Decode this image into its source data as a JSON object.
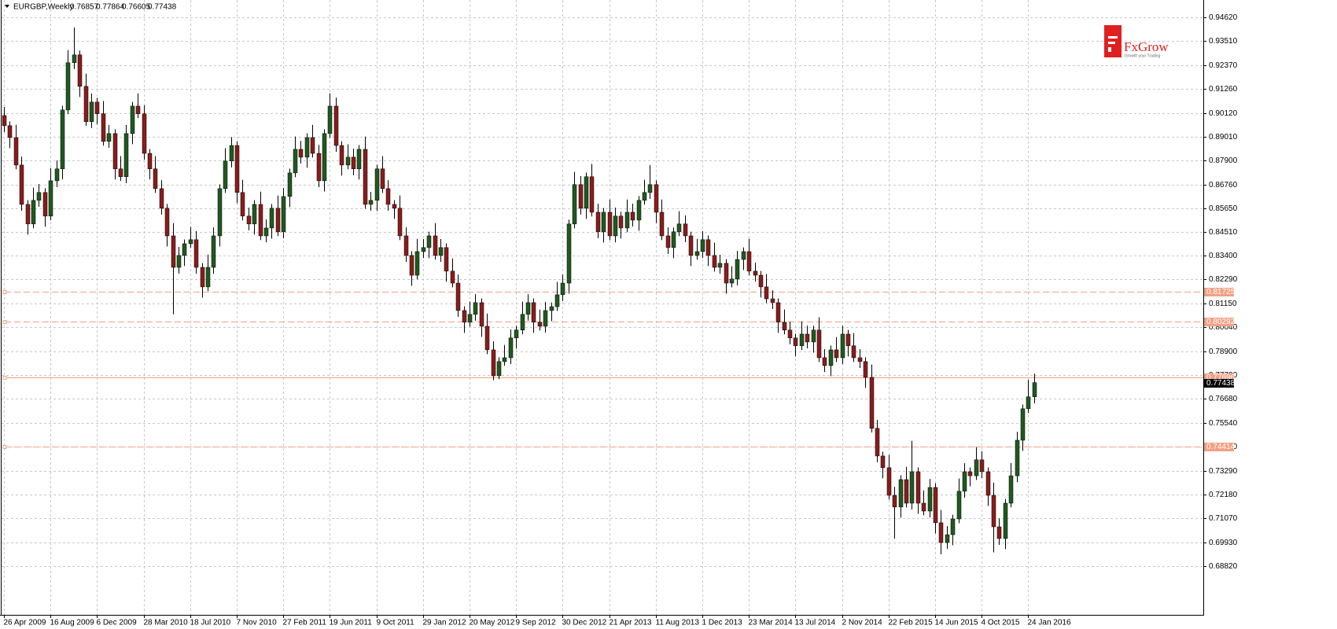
{
  "chart_data": {
    "type": "candlestick",
    "title": "EURGBP,Weekly",
    "header_values": [
      0.76857,
      0.77864,
      0.76605,
      0.77438
    ],
    "up_color": "#1f5a1f",
    "down_color": "#8a1c1c",
    "wick_color": "#000000",
    "grid": true,
    "ylim": [
      0.6652,
      0.9543
    ],
    "yticks": [
      {
        "value": 0.9462,
        "label": "0.94620"
      },
      {
        "value": 0.9351,
        "label": "0.93510"
      },
      {
        "value": 0.9237,
        "label": "0.92370"
      },
      {
        "value": 0.9126,
        "label": "0.91260"
      },
      {
        "value": 0.9012,
        "label": "0.90120"
      },
      {
        "value": 0.8901,
        "label": "0.89010"
      },
      {
        "value": 0.879,
        "label": "0.87900"
      },
      {
        "value": 0.8676,
        "label": "0.86760"
      },
      {
        "value": 0.8565,
        "label": "0.85650"
      },
      {
        "value": 0.8451,
        "label": "0.84510"
      },
      {
        "value": 0.834,
        "label": "0.83400"
      },
      {
        "value": 0.8229,
        "label": "0.82290"
      },
      {
        "value": 0.8115,
        "label": "0.81150"
      },
      {
        "value": 0.8004,
        "label": "0.80040"
      },
      {
        "value": 0.789,
        "label": "0.78900"
      },
      {
        "value": 0.7779,
        "label": "0.77790"
      },
      {
        "value": 0.7668,
        "label": "0.76680"
      },
      {
        "value": 0.7554,
        "label": "0.75540"
      },
      {
        "value": 0.7443,
        "label": "0.74430"
      },
      {
        "value": 0.7329,
        "label": "0.73290"
      },
      {
        "value": 0.7218,
        "label": "0.72180"
      },
      {
        "value": 0.7107,
        "label": "0.71070"
      },
      {
        "value": 0.6993,
        "label": "0.69930"
      },
      {
        "value": 0.6882,
        "label": "0.68820"
      }
    ],
    "levels": [
      {
        "value": 0.81725,
        "style": "dashed"
      },
      {
        "value": 0.80292,
        "style": "dashed"
      },
      {
        "value": 0.77696,
        "style": "solid"
      },
      {
        "value": 0.74414,
        "style": "dashed"
      }
    ],
    "level_color": "#f3a083",
    "last_price": 0.77438,
    "categories": [
      "26 Apr 2009",
      null,
      null,
      null,
      null,
      null,
      null,
      null,
      "16 Aug 2009",
      null,
      null,
      null,
      null,
      null,
      null,
      null,
      "6 Dec 2009",
      null,
      null,
      null,
      null,
      null,
      null,
      null,
      "28 Mar 2010",
      null,
      null,
      null,
      null,
      null,
      null,
      null,
      "18 Jul 2010",
      null,
      null,
      null,
      null,
      null,
      null,
      null,
      "7 Nov 2010",
      null,
      null,
      null,
      null,
      null,
      null,
      null,
      "27 Feb 2011",
      null,
      null,
      null,
      null,
      null,
      null,
      null,
      "19 Jun 2011",
      null,
      null,
      null,
      null,
      null,
      null,
      null,
      "9 Oct 2011",
      null,
      null,
      null,
      null,
      null,
      null,
      null,
      "29 Jan 2012",
      null,
      null,
      null,
      null,
      null,
      null,
      null,
      "20 May 2012",
      null,
      null,
      null,
      null,
      null,
      null,
      null,
      "9 Sep 2012",
      null,
      null,
      null,
      null,
      null,
      null,
      null,
      "30 Dec 2012",
      null,
      null,
      null,
      null,
      null,
      null,
      null,
      "21 Apr 2013",
      null,
      null,
      null,
      null,
      null,
      null,
      null,
      "11 Aug 2013",
      null,
      null,
      null,
      null,
      null,
      null,
      null,
      "1 Dec 2013",
      null,
      null,
      null,
      null,
      null,
      null,
      null,
      "23 Mar 2014",
      null,
      null,
      null,
      null,
      null,
      null,
      null,
      "13 Jul 2014",
      null,
      null,
      null,
      null,
      null,
      null,
      null,
      "2 Nov 2014",
      null,
      null,
      null,
      null,
      null,
      null,
      null,
      "22 Feb 2015",
      null,
      null,
      null,
      null,
      null,
      null,
      null,
      "14 Jun 2015",
      null,
      null,
      null,
      null,
      null,
      null,
      null,
      "4 Oct 2015",
      null,
      null,
      null,
      null,
      null,
      null,
      null,
      "24 Jan 2016",
      null
    ],
    "open": [
      0.9,
      0.8952,
      0.8896,
      0.8767,
      0.8582,
      0.849,
      0.8601,
      0.8638,
      0.8527,
      0.8693,
      0.8749,
      0.9026,
      0.9248,
      0.9285,
      0.9137,
      0.8971,
      0.9063,
      0.9008,
      0.8878,
      0.8915,
      0.8749,
      0.8712,
      0.8915,
      0.9044,
      0.9008,
      0.8822,
      0.8749,
      0.8656,
      0.8564,
      0.8434,
      0.8286,
      0.8342,
      0.8397,
      0.8416,
      0.8286,
      0.8194,
      0.8286,
      0.8434,
      0.8656,
      0.8786,
      0.8859,
      0.8638,
      0.8527,
      0.849,
      0.8582,
      0.8434,
      0.8471,
      0.8564,
      0.8453,
      0.8619,
      0.873,
      0.8841,
      0.8804,
      0.8896,
      0.8822,
      0.8693,
      0.8915,
      0.9044,
      0.8859,
      0.8767,
      0.8804,
      0.8749,
      0.8841,
      0.8582,
      0.8601,
      0.8749,
      0.8656,
      0.8582,
      0.8564,
      0.8434,
      0.8342,
      0.8249,
      0.836,
      0.8379,
      0.8434,
      0.8342,
      0.8379,
      0.8268,
      0.8212,
      0.8083,
      0.8028,
      0.8065,
      0.812,
      0.8009,
      0.7898,
      0.7776,
      0.7843,
      0.7861,
      0.7954,
      0.7991,
      0.8065,
      0.812,
      0.8028,
      0.8009,
      0.8083,
      0.8101,
      0.8157,
      0.8212,
      0.849,
      0.8675,
      0.8564,
      0.8712,
      0.8545,
      0.8453,
      0.8545,
      0.8434,
      0.8527,
      0.8471,
      0.8545,
      0.8508,
      0.8601,
      0.8638,
      0.8675,
      0.8545,
      0.8434,
      0.8379,
      0.8453,
      0.849,
      0.8434,
      0.8342,
      0.836,
      0.8416,
      0.8342,
      0.8286,
      0.8305,
      0.8212,
      0.8231,
      0.8323,
      0.836,
      0.8268,
      0.8249,
      0.8194,
      0.8138,
      0.812,
      0.8028,
      0.7991,
      0.7954,
      0.7917,
      0.7972,
      0.7935,
      0.7991,
      0.7861,
      0.7824,
      0.7898,
      0.7861,
      0.7972,
      0.7917,
      0.7861,
      0.7843,
      0.7769,
      0.7529,
      0.7399,
      0.7344,
      0.7214,
      0.7159,
      0.7288,
      0.7177,
      0.7325,
      0.7177,
      0.714,
      0.7251,
      0.7085,
      0.6992,
      0.7029,
      0.7103,
      0.7233,
      0.7325,
      0.7306,
      0.7381,
      0.7325,
      0.7214,
      0.7066,
      0.7011,
      0.7177,
      0.7306,
      0.7473,
      0.7621,
      0.7677
    ],
    "high": [
      0.904,
      0.8972,
      0.8956,
      0.8807,
      0.8602,
      0.8661,
      0.8678,
      0.8658,
      0.8753,
      0.8789,
      0.9046,
      0.9308,
      0.9414,
      0.9305,
      0.9197,
      0.9103,
      0.9083,
      0.9068,
      0.8955,
      0.8935,
      0.8809,
      0.8955,
      0.9064,
      0.9104,
      0.9048,
      0.8842,
      0.8809,
      0.8696,
      0.8584,
      0.8494,
      0.8382,
      0.8417,
      0.8476,
      0.8456,
      0.8306,
      0.8346,
      0.8474,
      0.8676,
      0.8846,
      0.8899,
      0.8879,
      0.8698,
      0.8567,
      0.8602,
      0.8642,
      0.8511,
      0.8584,
      0.8624,
      0.8659,
      0.875,
      0.8901,
      0.8881,
      0.8916,
      0.8956,
      0.8862,
      0.8935,
      0.9104,
      0.9084,
      0.8879,
      0.8864,
      0.8844,
      0.8861,
      0.8901,
      0.8641,
      0.8769,
      0.8809,
      0.8696,
      0.8602,
      0.8624,
      0.8474,
      0.8362,
      0.842,
      0.8419,
      0.8454,
      0.8494,
      0.8419,
      0.8399,
      0.8328,
      0.8252,
      0.8103,
      0.8125,
      0.816,
      0.814,
      0.8069,
      0.7938,
      0.7863,
      0.7921,
      0.7994,
      0.8011,
      0.8125,
      0.816,
      0.814,
      0.8088,
      0.8123,
      0.8121,
      0.8217,
      0.8252,
      0.851,
      0.8735,
      0.8715,
      0.8732,
      0.8772,
      0.8585,
      0.8565,
      0.8605,
      0.8567,
      0.8547,
      0.8605,
      0.8585,
      0.8621,
      0.8698,
      0.8767,
      0.8695,
      0.8605,
      0.8474,
      0.8473,
      0.855,
      0.853,
      0.8454,
      0.842,
      0.8456,
      0.8436,
      0.8402,
      0.8345,
      0.8325,
      0.8291,
      0.8363,
      0.838,
      0.842,
      0.8308,
      0.8269,
      0.8254,
      0.8178,
      0.814,
      0.8088,
      0.8031,
      0.7974,
      0.8032,
      0.8012,
      0.8011,
      0.8051,
      0.7901,
      0.7918,
      0.7958,
      0.8012,
      0.7992,
      0.7977,
      0.7901,
      0.7863,
      0.7829,
      0.7569,
      0.7419,
      0.7404,
      0.7254,
      0.7308,
      0.7348,
      0.747,
      0.7345,
      0.7237,
      0.7291,
      0.7271,
      0.7145,
      0.7069,
      0.7123,
      0.7293,
      0.7365,
      0.7345,
      0.7441,
      0.7421,
      0.7345,
      0.7274,
      0.7106,
      0.7197,
      0.7366,
      0.7513,
      0.7641,
      0.7757,
      0.7786
    ],
    "low": [
      0.8922,
      0.8846,
      0.8747,
      0.8552,
      0.844,
      0.847,
      0.8571,
      0.8477,
      0.8507,
      0.8663,
      0.8699,
      0.9006,
      0.9218,
      0.9087,
      0.8951,
      0.8941,
      0.8958,
      0.8858,
      0.8848,
      0.8699,
      0.8692,
      0.8682,
      0.8865,
      0.8988,
      0.8792,
      0.8699,
      0.8636,
      0.8534,
      0.8384,
      0.8065,
      0.8256,
      0.8292,
      0.8377,
      0.8256,
      0.8144,
      0.8174,
      0.8256,
      0.8384,
      0.8636,
      0.8756,
      0.8588,
      0.8507,
      0.846,
      0.844,
      0.8414,
      0.8404,
      0.8421,
      0.8433,
      0.8423,
      0.8569,
      0.871,
      0.8774,
      0.8754,
      0.8802,
      0.8663,
      0.8643,
      0.8895,
      0.8829,
      0.8717,
      0.8747,
      0.8719,
      0.8699,
      0.8562,
      0.8552,
      0.8551,
      0.8636,
      0.8552,
      0.8514,
      0.8414,
      0.8312,
      0.8199,
      0.8229,
      0.833,
      0.8329,
      0.8322,
      0.8312,
      0.8218,
      0.8192,
      0.8053,
      0.7978,
      0.8008,
      0.8035,
      0.7959,
      0.7878,
      0.7755,
      0.776,
      0.7823,
      0.7831,
      0.7904,
      0.7971,
      0.8035,
      0.7978,
      0.7989,
      0.7979,
      0.8033,
      0.8081,
      0.8127,
      0.8162,
      0.847,
      0.8534,
      0.8514,
      0.8525,
      0.8423,
      0.8403,
      0.8414,
      0.8404,
      0.8421,
      0.8451,
      0.8478,
      0.8458,
      0.8581,
      0.8608,
      0.8495,
      0.8414,
      0.8349,
      0.8329,
      0.8433,
      0.8404,
      0.8292,
      0.8322,
      0.833,
      0.8292,
      0.8266,
      0.8256,
      0.8162,
      0.8192,
      0.8201,
      0.8273,
      0.8248,
      0.8219,
      0.8144,
      0.8118,
      0.809,
      0.7978,
      0.7971,
      0.7924,
      0.7867,
      0.7897,
      0.7905,
      0.7885,
      0.7841,
      0.7794,
      0.7774,
      0.7841,
      0.7831,
      0.7867,
      0.7841,
      0.7813,
      0.7719,
      0.7509,
      0.7369,
      0.7294,
      0.7194,
      0.701,
      0.7109,
      0.7157,
      0.7147,
      0.7127,
      0.712,
      0.711,
      0.7035,
      0.6937,
      0.6962,
      0.6979,
      0.7083,
      0.7203,
      0.7256,
      0.7286,
      0.7295,
      0.7164,
      0.6946,
      0.6981,
      0.6961,
      0.7157,
      0.7276,
      0.7423,
      0.7601,
      0.7647
    ],
    "close": [
      0.8952,
      0.8896,
      0.8767,
      0.8582,
      0.849,
      0.8601,
      0.8638,
      0.8527,
      0.8693,
      0.8749,
      0.9026,
      0.9248,
      0.9285,
      0.9137,
      0.8971,
      0.9063,
      0.9008,
      0.8878,
      0.8915,
      0.8749,
      0.8712,
      0.8915,
      0.9044,
      0.9008,
      0.8822,
      0.8749,
      0.8656,
      0.8564,
      0.8434,
      0.8286,
      0.8342,
      0.8397,
      0.8416,
      0.8286,
      0.8194,
      0.8286,
      0.8434,
      0.8656,
      0.8786,
      0.8859,
      0.8638,
      0.8527,
      0.849,
      0.8582,
      0.8434,
      0.8471,
      0.8564,
      0.8453,
      0.8619,
      0.873,
      0.8841,
      0.8804,
      0.8896,
      0.8822,
      0.8693,
      0.8915,
      0.9044,
      0.8859,
      0.8767,
      0.8804,
      0.8749,
      0.8841,
      0.8582,
      0.8601,
      0.8749,
      0.8656,
      0.8582,
      0.8564,
      0.8434,
      0.8342,
      0.8249,
      0.836,
      0.8379,
      0.8434,
      0.8342,
      0.8379,
      0.8268,
      0.8212,
      0.8083,
      0.8028,
      0.8065,
      0.812,
      0.8009,
      0.7898,
      0.7776,
      0.7843,
      0.7861,
      0.7954,
      0.7991,
      0.8065,
      0.812,
      0.8028,
      0.8009,
      0.8083,
      0.8101,
      0.8157,
      0.8212,
      0.849,
      0.8675,
      0.8564,
      0.8712,
      0.8545,
      0.8453,
      0.8545,
      0.8434,
      0.8527,
      0.8471,
      0.8545,
      0.8508,
      0.8601,
      0.8638,
      0.8675,
      0.8545,
      0.8434,
      0.8379,
      0.8453,
      0.849,
      0.8434,
      0.8342,
      0.836,
      0.8416,
      0.8342,
      0.8286,
      0.8305,
      0.8212,
      0.8231,
      0.8323,
      0.836,
      0.8268,
      0.8249,
      0.8194,
      0.8138,
      0.812,
      0.8028,
      0.7991,
      0.7954,
      0.7917,
      0.7972,
      0.7935,
      0.7991,
      0.7861,
      0.7824,
      0.7898,
      0.7861,
      0.7972,
      0.7917,
      0.7861,
      0.7843,
      0.7769,
      0.7529,
      0.7399,
      0.7344,
      0.7214,
      0.7159,
      0.7288,
      0.7177,
      0.7325,
      0.7177,
      0.714,
      0.7251,
      0.7085,
      0.6992,
      0.7029,
      0.7103,
      0.7233,
      0.7325,
      0.7306,
      0.7381,
      0.7325,
      0.7214,
      0.7066,
      0.7011,
      0.7177,
      0.7306,
      0.7473,
      0.7621,
      0.7677,
      0.7744
    ]
  },
  "logo": {
    "name": "FxGrow",
    "tagline": "Growth your Trading"
  }
}
